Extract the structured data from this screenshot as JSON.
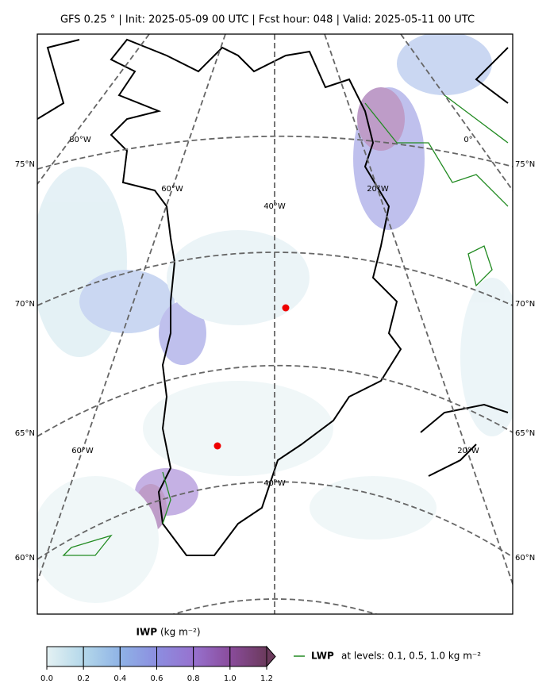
{
  "title": "GFS 0.25 °  |  Init: 2025-05-09 00 UTC  |  Fcst hour: 048  |  Valid: 2025-05-11 00 UTC",
  "lat_labels": [
    "75°N",
    "70°N",
    "65°N",
    "60°N"
  ],
  "lon_labels": [
    "80°W",
    "60°W",
    "40°W",
    "20°W",
    "0°",
    "60°W",
    "40°W",
    "20°W"
  ],
  "colorbar": {
    "label": "IWP",
    "unit": "(kg m⁻²)",
    "range": [
      0,
      1.2
    ],
    "ticks": [
      {
        "value": 0,
        "label": "0.0"
      },
      0.2,
      0.4,
      0.6,
      0.8,
      {
        "value": 1,
        "label": "1.0"
      },
      1.2
    ],
    "colors": [
      "#e4f1f3",
      "#b4d8ea",
      "#8fb3e6",
      "#8c8ee0",
      "#9772cf",
      "#8a4c9c",
      "#6b3a5c"
    ]
  },
  "legend": {
    "label": "LWP",
    "text": "at levels: 0.1, 0.5, 1.0  kg m⁻²",
    "color": "#228b22"
  }
}
